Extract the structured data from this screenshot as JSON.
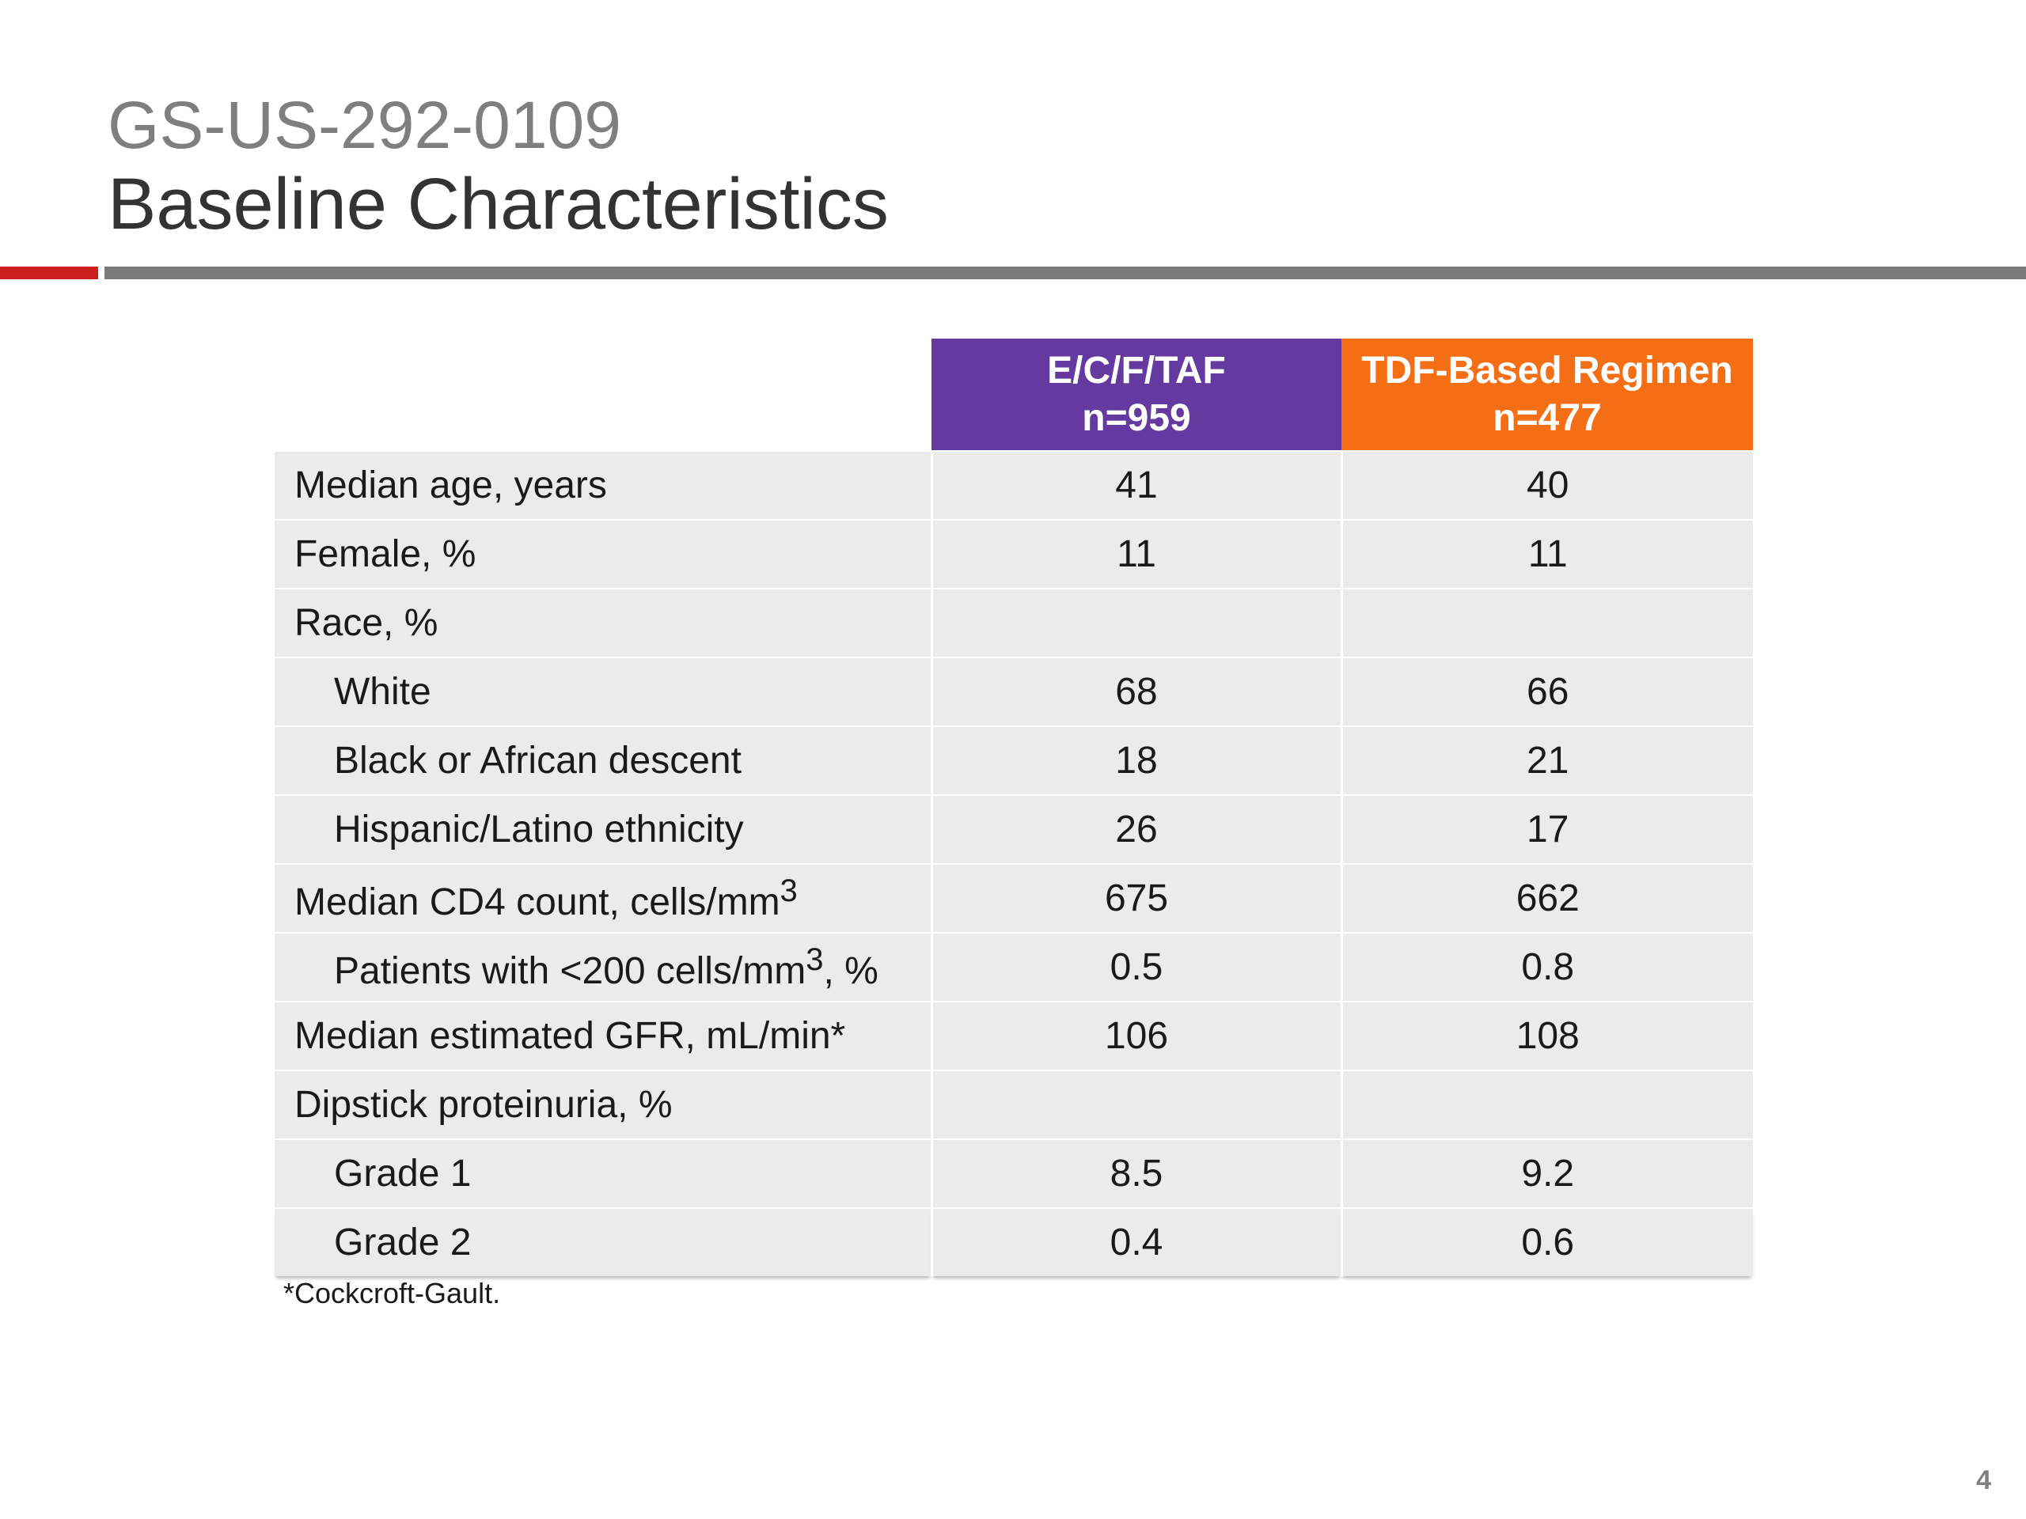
{
  "slide": {
    "title_line1": "GS-US-292-0109",
    "title_line2": "Baseline Characteristics",
    "accent_colors": {
      "red": "#cc1f1f",
      "gray_rule": "#7a7a7a",
      "purple": "#6439a0",
      "orange": "#f36e14"
    }
  },
  "table": {
    "columns": [
      {
        "name": "E/C/F/TAF",
        "n": "n=959"
      },
      {
        "name": "TDF-Based Regimen",
        "n": "n=477"
      }
    ],
    "rows": [
      {
        "label": "Median age, years",
        "a": "41",
        "b": "40"
      },
      {
        "label": "Female, %",
        "a": "11",
        "b": "11"
      },
      {
        "label": "Race, %",
        "a": "",
        "b": ""
      },
      {
        "label": "White",
        "a": "68",
        "b": "66"
      },
      {
        "label": "Black or African descent",
        "a": "18",
        "b": "21"
      },
      {
        "label": "Hispanic/Latino ethnicity",
        "a": "26",
        "b": "17"
      },
      {
        "label_main": "Median CD4 count, cells/mm",
        "sup": "3",
        "label_tail": "",
        "a": "675",
        "b": "662"
      },
      {
        "label_main": "Patients with <200 cells/mm",
        "sup": "3",
        "label_tail": ", %",
        "a": "0.5",
        "b": "0.8"
      },
      {
        "label": "Median estimated GFR, mL/min*",
        "a": "106",
        "b": "108"
      },
      {
        "label": "Dipstick proteinuria, %",
        "a": "",
        "b": ""
      },
      {
        "label": "Grade 1",
        "a": "8.5",
        "b": "9.2"
      },
      {
        "label": "Grade 2",
        "a": "0.4",
        "b": "0.6"
      }
    ]
  },
  "footnote": "*Cockcroft-Gault.",
  "page_number": "4"
}
